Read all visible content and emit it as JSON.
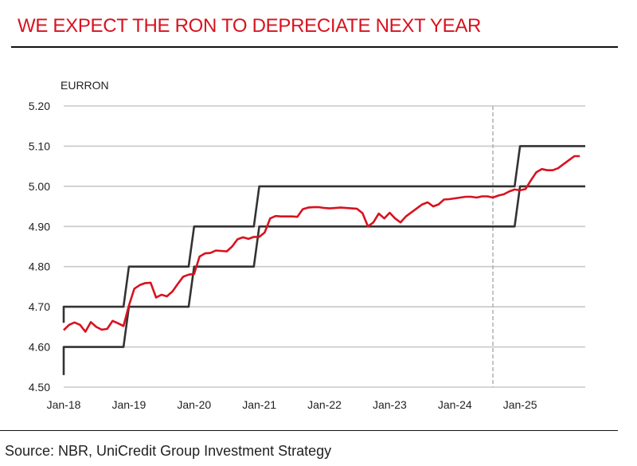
{
  "title": "WE EXPECT THE RON TO DEPRECIATE NEXT YEAR",
  "source": "Source: NBR, UniCredit Group Investment Strategy",
  "chart_data": {
    "type": "line",
    "ylabel": "EURRON",
    "xlabel": "",
    "ylim": [
      4.5,
      5.2
    ],
    "yticks": [
      "5.20",
      "5.10",
      "5.00",
      "4.90",
      "4.80",
      "4.70",
      "4.60",
      "4.50"
    ],
    "xticks": [
      "Jan-18",
      "Jan-19",
      "Jan-20",
      "Jan-21",
      "Jan-22",
      "Jan-23",
      "Jan-24",
      "Jan-25"
    ],
    "xlim": [
      "Jan-18",
      "Jan-26"
    ],
    "grid": "horizontal",
    "forecast_divider": "Aug-24",
    "colors": {
      "actual": "#d8121f",
      "band": "#333333",
      "grid": "#c8c8c8",
      "divider": "#b0b0b0",
      "title": "#d8121f"
    },
    "series": [
      {
        "role": "upper-band",
        "points": [
          [
            "Jan-18",
            4.66
          ],
          [
            "Jan-18",
            4.7
          ],
          [
            "Dec-18",
            4.7
          ],
          [
            "Jan-19",
            4.8
          ],
          [
            "Dec-19",
            4.8
          ],
          [
            "Jan-20",
            4.9
          ],
          [
            "Dec-20",
            4.9
          ],
          [
            "Jan-21",
            5.0
          ],
          [
            "Dec-24",
            5.0
          ],
          [
            "Jan-25",
            5.1
          ],
          [
            "Jan-26",
            5.1
          ]
        ]
      },
      {
        "role": "lower-band",
        "points": [
          [
            "Jan-18",
            4.53
          ],
          [
            "Jan-18",
            4.6
          ],
          [
            "Dec-18",
            4.6
          ],
          [
            "Jan-19",
            4.7
          ],
          [
            "Dec-19",
            4.7
          ],
          [
            "Jan-20",
            4.8
          ],
          [
            "Dec-20",
            4.8
          ],
          [
            "Jan-21",
            4.9
          ],
          [
            "Dec-24",
            4.9
          ],
          [
            "Jan-25",
            5.0
          ],
          [
            "Jan-26",
            5.0
          ]
        ]
      },
      {
        "role": "actual-and-forecast",
        "points": [
          [
            "Jan-18",
            4.642
          ],
          [
            "Feb-18",
            4.655
          ],
          [
            "Mar-18",
            4.661
          ],
          [
            "Apr-18",
            4.655
          ],
          [
            "May-18",
            4.638
          ],
          [
            "Jun-18",
            4.662
          ],
          [
            "Jul-18",
            4.65
          ],
          [
            "Aug-18",
            4.643
          ],
          [
            "Sep-18",
            4.645
          ],
          [
            "Oct-18",
            4.665
          ],
          [
            "Nov-18",
            4.659
          ],
          [
            "Dec-18",
            4.652
          ],
          [
            "Jan-19",
            4.703
          ],
          [
            "Feb-19",
            4.745
          ],
          [
            "Mar-19",
            4.754
          ],
          [
            "Apr-19",
            4.759
          ],
          [
            "May-19",
            4.76
          ],
          [
            "Jun-19",
            4.723
          ],
          [
            "Jul-19",
            4.73
          ],
          [
            "Aug-19",
            4.726
          ],
          [
            "Sep-19",
            4.738
          ],
          [
            "Oct-19",
            4.757
          ],
          [
            "Nov-19",
            4.775
          ],
          [
            "Dec-19",
            4.78
          ],
          [
            "Jan-20",
            4.782
          ],
          [
            "Feb-20",
            4.825
          ],
          [
            "Mar-20",
            4.833
          ],
          [
            "Apr-20",
            4.834
          ],
          [
            "May-20",
            4.84
          ],
          [
            "Jun-20",
            4.839
          ],
          [
            "Jul-20",
            4.838
          ],
          [
            "Aug-20",
            4.85
          ],
          [
            "Sep-20",
            4.868
          ],
          [
            "Oct-20",
            4.873
          ],
          [
            "Nov-20",
            4.869
          ],
          [
            "Dec-20",
            4.874
          ],
          [
            "Jan-21",
            4.874
          ],
          [
            "Feb-21",
            4.885
          ],
          [
            "Mar-21",
            4.92
          ],
          [
            "Apr-21",
            4.926
          ],
          [
            "May-21",
            4.925
          ],
          [
            "Jun-21",
            4.925
          ],
          [
            "Jul-21",
            4.925
          ],
          [
            "Aug-21",
            4.924
          ],
          [
            "Sep-21",
            4.943
          ],
          [
            "Oct-21",
            4.947
          ],
          [
            "Nov-21",
            4.948
          ],
          [
            "Dec-21",
            4.948
          ],
          [
            "Jan-22",
            4.946
          ],
          [
            "Feb-22",
            4.945
          ],
          [
            "Mar-22",
            4.946
          ],
          [
            "Apr-22",
            4.947
          ],
          [
            "May-22",
            4.946
          ],
          [
            "Jun-22",
            4.945
          ],
          [
            "Jul-22",
            4.944
          ],
          [
            "Aug-22",
            4.933
          ],
          [
            "Sep-22",
            4.9
          ],
          [
            "Oct-22",
            4.91
          ],
          [
            "Nov-22",
            4.932
          ],
          [
            "Dec-22",
            4.92
          ],
          [
            "Jan-23",
            4.934
          ],
          [
            "Feb-23",
            4.92
          ],
          [
            "Mar-23",
            4.91
          ],
          [
            "Apr-23",
            4.925
          ],
          [
            "May-23",
            4.935
          ],
          [
            "Jun-23",
            4.945
          ],
          [
            "Jul-23",
            4.955
          ],
          [
            "Aug-23",
            4.96
          ],
          [
            "Sep-23",
            4.95
          ],
          [
            "Oct-23",
            4.955
          ],
          [
            "Nov-23",
            4.967
          ],
          [
            "Dec-23",
            4.968
          ],
          [
            "Jan-24",
            4.97
          ],
          [
            "Feb-24",
            4.972
          ],
          [
            "Mar-24",
            4.974
          ],
          [
            "Apr-24",
            4.974
          ],
          [
            "May-24",
            4.972
          ],
          [
            "Jun-24",
            4.975
          ],
          [
            "Jul-24",
            4.975
          ],
          [
            "Aug-24",
            4.972
          ],
          [
            "Sep-24",
            4.977
          ],
          [
            "Oct-24",
            4.98
          ],
          [
            "Nov-24",
            4.987
          ],
          [
            "Dec-24",
            4.992
          ],
          [
            "Jan-25",
            4.99
          ],
          [
            "Feb-25",
            4.993
          ],
          [
            "Mar-25",
            5.015
          ],
          [
            "Apr-25",
            5.035
          ],
          [
            "May-25",
            5.043
          ],
          [
            "Jun-25",
            5.04
          ],
          [
            "Jul-25",
            5.04
          ],
          [
            "Aug-25",
            5.045
          ],
          [
            "Sep-25",
            5.055
          ],
          [
            "Oct-25",
            5.065
          ],
          [
            "Nov-25",
            5.075
          ],
          [
            "Dec-25",
            5.075
          ]
        ]
      }
    ]
  }
}
